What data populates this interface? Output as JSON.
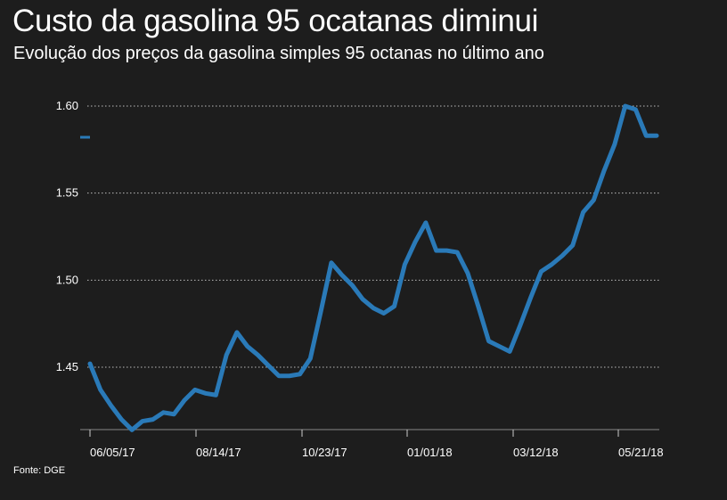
{
  "header": {
    "title": "Custo da gasolina 95 ocatanas diminui",
    "subtitle": "Evolução dos preços da gasolina simples 95 octanas no último ano"
  },
  "footer": {
    "source": "Fonte: DGE"
  },
  "colors": {
    "background": "#1d1d1d",
    "line": "#2a7ab8",
    "grid": "#bbbbbb",
    "text": "#ffffff"
  },
  "chart_data": {
    "type": "line",
    "title": "Custo da gasolina 95 ocatanas diminui",
    "subtitle": "Evolução dos preços da gasolina simples 95 octanas no último ano",
    "xlabel": "",
    "ylabel": "",
    "ylim": [
      1.41,
      1.605
    ],
    "y_ticks": [
      "1.45",
      "1.50",
      "1.55",
      "1.60"
    ],
    "x_ticks": [
      "06/05/17",
      "08/14/17",
      "10/23/17",
      "01/01/18",
      "03/12/18",
      "05/21/18"
    ],
    "grid": "horizontal dotted",
    "legend": "none",
    "series": [
      {
        "values": [
          1.452,
          1.437,
          1.428,
          1.42,
          1.414,
          1.419,
          1.42,
          1.424,
          1.423,
          1.431,
          1.437,
          1.435,
          1.434,
          1.457,
          1.47,
          1.462,
          1.457,
          1.451,
          1.445,
          1.445,
          1.446,
          1.455,
          1.482,
          1.51,
          1.503,
          1.497,
          1.489,
          1.484,
          1.481,
          1.485,
          1.509,
          1.522,
          1.533,
          1.517,
          1.517,
          1.516,
          1.504,
          1.485,
          1.465,
          1.462,
          1.459,
          1.474,
          1.49,
          1.505,
          1.509,
          1.514,
          1.52,
          1.539,
          1.546,
          1.563,
          1.578,
          1.6,
          1.598,
          1.583,
          1.583
        ]
      }
    ]
  }
}
